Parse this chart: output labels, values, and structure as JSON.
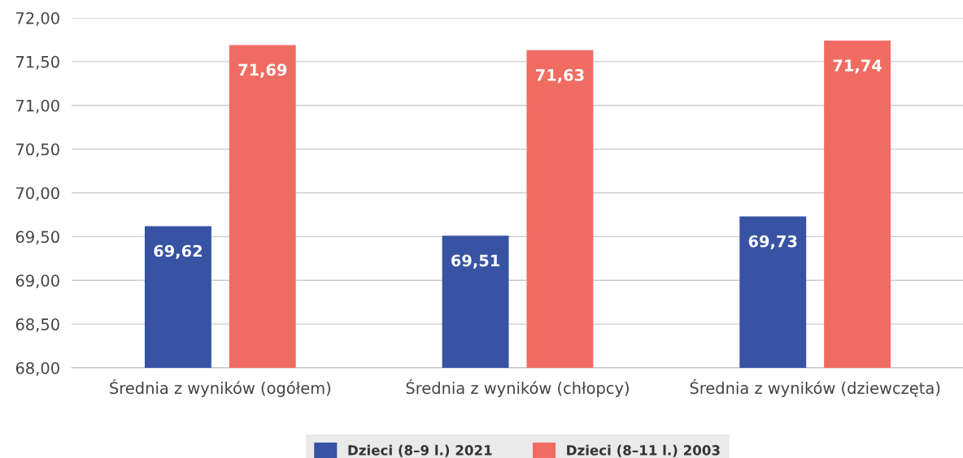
{
  "chart_data": {
    "type": "bar",
    "categories": [
      "Średnia z wyników (ogółem)",
      "Średnia z wyników (chłopcy)",
      "Średnia z wyników (dziewczęta)"
    ],
    "series": [
      {
        "name": "Dzieci (8–9 l.) 2021",
        "color": "#3853a4",
        "values": [
          69.62,
          69.51,
          69.73
        ],
        "value_labels": [
          "69,62",
          "69,51",
          "69,73"
        ]
      },
      {
        "name": "Dzieci (8–11 l.) 2003",
        "color": "#f06c62",
        "values": [
          71.69,
          71.63,
          71.74
        ],
        "value_labels": [
          "71,69",
          "71,63",
          "71,74"
        ]
      }
    ],
    "ylim": [
      68,
      72
    ],
    "yticks": [
      {
        "value": 68,
        "label": "68,00"
      },
      {
        "value": 68.5,
        "label": "68,50"
      },
      {
        "value": 69,
        "label": "69,00"
      },
      {
        "value": 69.5,
        "label": "69,50"
      },
      {
        "value": 70,
        "label": "70,00"
      },
      {
        "value": 70.5,
        "label": "70,50"
      },
      {
        "value": 71,
        "label": "71,00"
      },
      {
        "value": 71.5,
        "label": "71,50"
      },
      {
        "value": 72,
        "label": "72,00"
      }
    ],
    "grid": "y",
    "legend": "bottom"
  }
}
